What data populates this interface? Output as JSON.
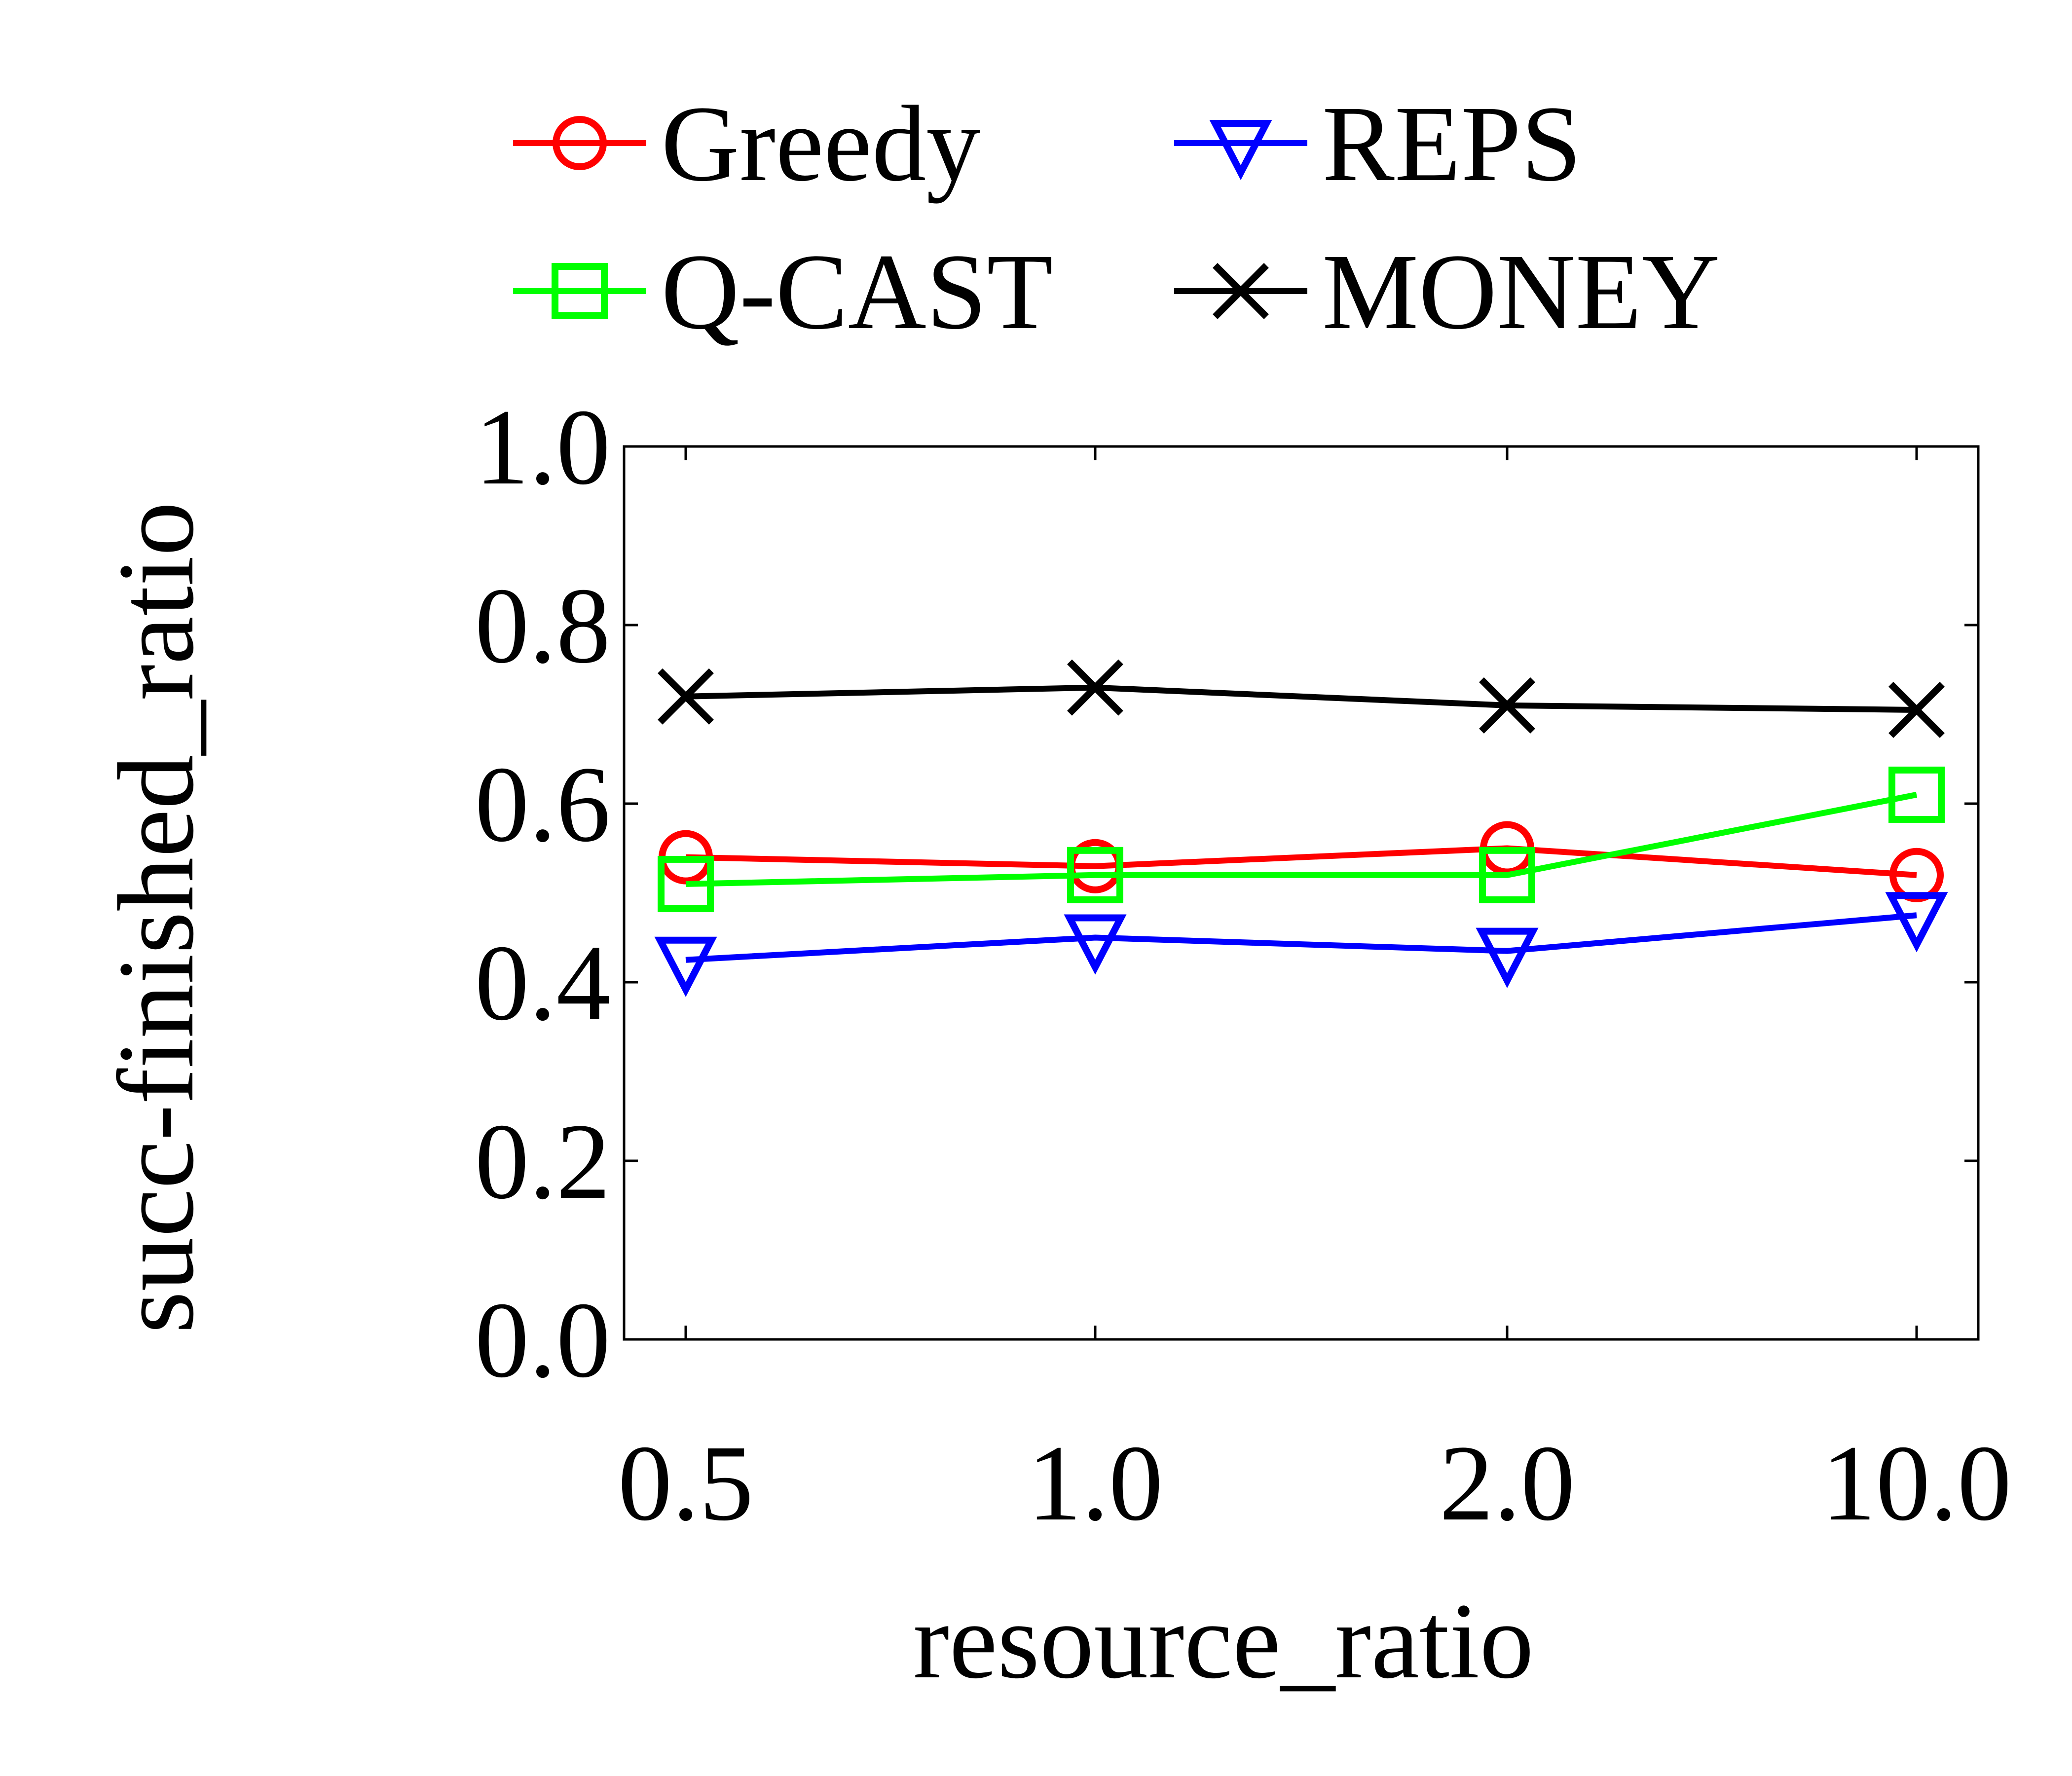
{
  "chart_data": {
    "type": "line",
    "categories": [
      "0.5",
      "1.0",
      "2.0",
      "10.0"
    ],
    "xlabel": "resource_ratio",
    "ylabel": "succ-finished_ratio",
    "ylim": [
      0.0,
      1.0
    ],
    "yticks": [
      "0.0",
      "0.2",
      "0.4",
      "0.6",
      "0.8",
      "1.0"
    ],
    "grid": false,
    "legend": "top",
    "series": [
      {
        "name": "Greedy",
        "color": "#ff0000",
        "marker": "circle",
        "values": [
          0.54,
          0.53,
          0.55,
          0.52
        ]
      },
      {
        "name": "REPS",
        "color": "#0000ff",
        "marker": "triangle-down",
        "values": [
          0.425,
          0.45,
          0.435,
          0.475
        ]
      },
      {
        "name": "Q-CAST",
        "color": "#00ff00",
        "marker": "square",
        "values": [
          0.51,
          0.52,
          0.52,
          0.61
        ]
      },
      {
        "name": "MONEY",
        "color": "#000000",
        "marker": "x",
        "values": [
          0.72,
          0.73,
          0.71,
          0.705
        ]
      }
    ]
  }
}
